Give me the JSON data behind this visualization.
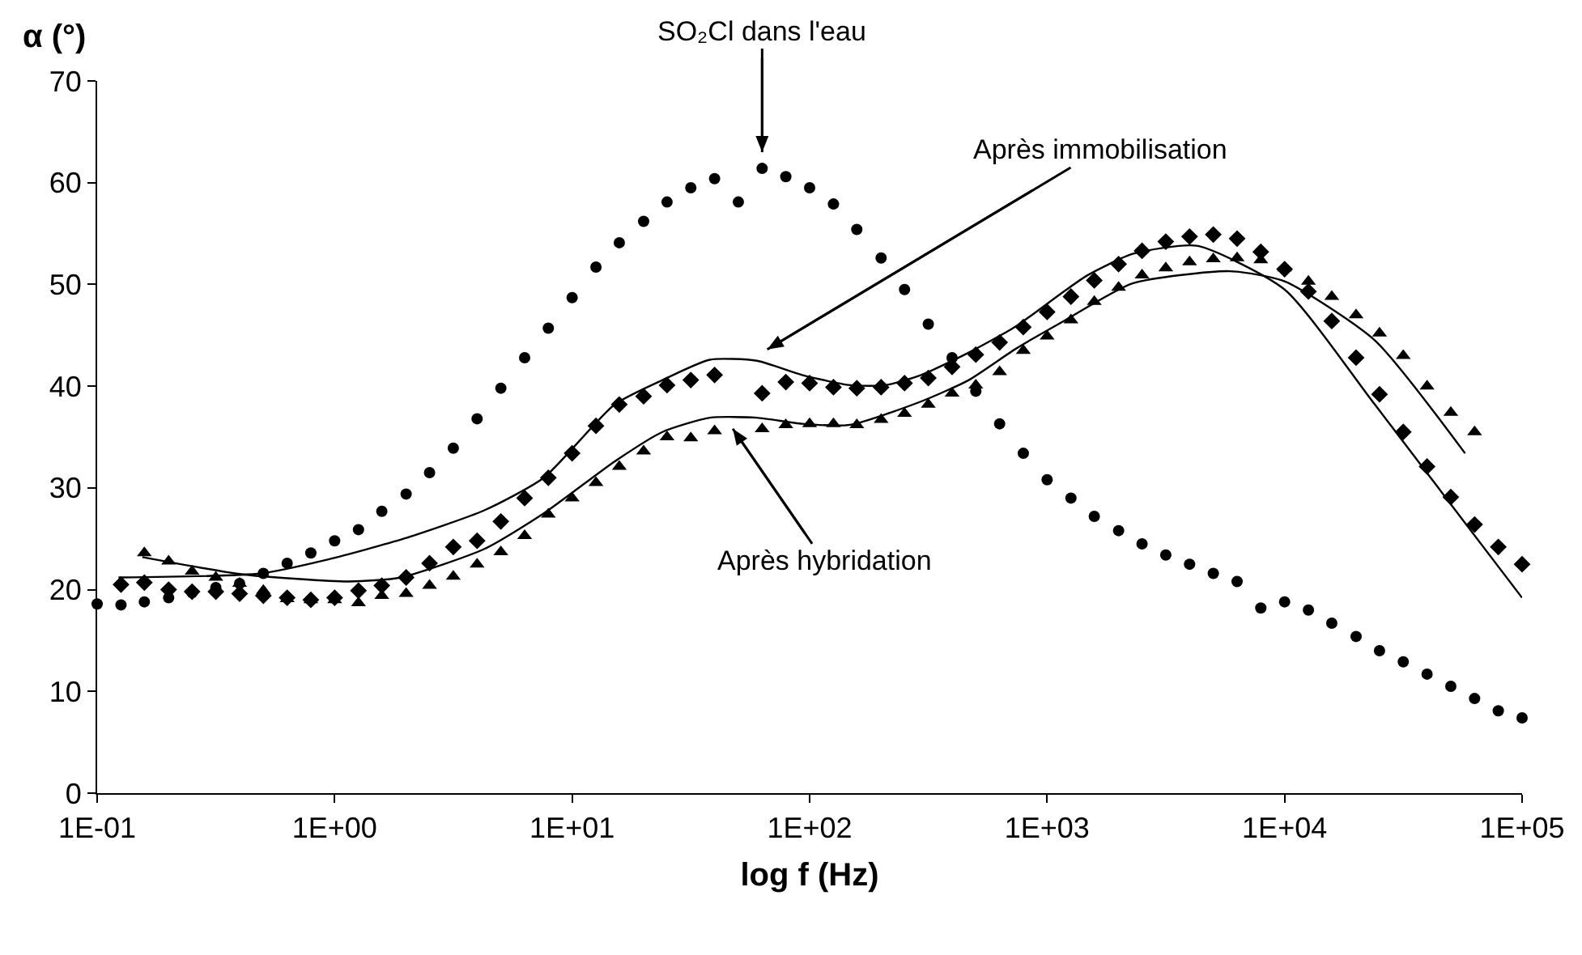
{
  "chart_data": {
    "type": "scatter",
    "xlabel": "log f (Hz)",
    "ylabel": "α (°)",
    "log": "x",
    "grid": false,
    "xlim": [
      0.1,
      100000
    ],
    "xticks": [
      {
        "value": 0.1,
        "label": "1E-01"
      },
      {
        "value": 1,
        "label": "1E+00"
      },
      {
        "value": 10,
        "label": "1E+01"
      },
      {
        "value": 100,
        "label": "1E+02"
      },
      {
        "value": 1000,
        "label": "1E+03"
      },
      {
        "value": 10000,
        "label": "1E+04"
      },
      {
        "value": 100000,
        "label": "1E+05"
      }
    ],
    "ylim": [
      0,
      70
    ],
    "yticks": [
      0,
      10,
      20,
      30,
      40,
      50,
      60,
      70
    ],
    "x": [
      0.1,
      0.126,
      0.158,
      0.2,
      0.251,
      0.316,
      0.398,
      0.501,
      0.631,
      0.794,
      1,
      1.26,
      1.58,
      2,
      2.51,
      3.16,
      3.98,
      5.01,
      6.31,
      7.94,
      10,
      12.6,
      15.8,
      20,
      25.1,
      31.6,
      39.8,
      50.1,
      63.1,
      79.4,
      100,
      126,
      158,
      200,
      251,
      316,
      398,
      501,
      631,
      794,
      1000,
      1260,
      1580,
      2000,
      2510,
      3160,
      3980,
      5010,
      6310,
      7940,
      10000,
      12600,
      15800,
      20000,
      25100,
      31600,
      39800,
      50100,
      63100,
      79400,
      100000
    ],
    "series": [
      {
        "type": "scatter",
        "marker": "circle",
        "color": "#000000",
        "values": [
          18.6,
          18.5,
          18.8,
          19.2,
          19.7,
          20.2,
          20.6,
          21.6,
          22.6,
          23.6,
          24.8,
          25.9,
          27.7,
          29.4,
          31.5,
          33.9,
          36.8,
          39.8,
          42.8,
          45.7,
          48.7,
          51.7,
          54.1,
          56.2,
          58.1,
          59.5,
          60.4,
          58.1,
          61.4,
          60.6,
          59.5,
          57.9,
          55.4,
          52.6,
          49.5,
          46.1,
          42.8,
          39.5,
          36.3,
          33.4,
          30.8,
          29.0,
          27.2,
          25.8,
          24.5,
          23.4,
          22.5,
          21.6,
          20.8,
          18.2,
          18.8,
          18.0,
          16.7,
          15.4,
          14.0,
          12.9,
          11.7,
          10.5,
          9.3,
          8.1,
          7.4
        ]
      },
      {
        "type": "scatter",
        "marker": "diamond",
        "color": "#000000",
        "values": [
          null,
          20.5,
          20.7,
          20.0,
          19.8,
          19.8,
          19.6,
          19.4,
          19.2,
          19.0,
          19.2,
          19.9,
          20.4,
          21.2,
          22.6,
          24.2,
          24.8,
          26.7,
          29.0,
          31.0,
          33.4,
          36.1,
          38.2,
          39.0,
          40.1,
          40.6,
          41.1,
          null,
          39.3,
          40.4,
          40.3,
          39.9,
          39.8,
          39.9,
          40.3,
          40.8,
          41.9,
          43.1,
          44.3,
          45.8,
          47.3,
          48.8,
          50.4,
          52.0,
          53.3,
          54.2,
          54.7,
          54.9,
          54.5,
          53.2,
          51.5,
          49.3,
          46.4,
          42.8,
          39.2,
          35.5,
          32.1,
          29.1,
          26.4,
          24.2,
          22.5
        ]
      },
      {
        "type": "scatter",
        "marker": "triangle",
        "color": "#000000",
        "values": [
          null,
          null,
          23.6,
          22.8,
          21.8,
          21.2,
          20.6,
          19.9,
          19.1,
          19.0,
          19.0,
          18.7,
          19.4,
          19.6,
          20.4,
          21.3,
          22.5,
          23.7,
          25.3,
          27.4,
          29.0,
          30.5,
          32.1,
          33.6,
          35.0,
          34.9,
          35.6,
          null,
          35.8,
          36.2,
          36.3,
          36.3,
          36.2,
          36.7,
          37.3,
          38.2,
          39.3,
          40.1,
          41.4,
          43.5,
          44.9,
          46.5,
          48.3,
          49.7,
          50.9,
          51.6,
          52.2,
          52.5,
          52.6,
          52.4,
          51.6,
          50.3,
          48.8,
          47.0,
          45.2,
          43.0,
          40.0,
          37.4,
          35.5,
          null,
          null
        ]
      },
      {
        "type": "line",
        "line_style": "solid",
        "color": "#000000",
        "x": [
          0.123,
          0.49,
          0.95,
          1.95,
          4.27,
          7.6,
          15.1,
          24,
          38,
          60,
          93,
          148,
          209,
          295,
          468,
          741,
          1175,
          1479,
          2291,
          4266,
          10000,
          23990,
          100000
        ],
        "values": [
          21.2,
          21.6,
          23,
          25,
          27.8,
          31,
          38.2,
          40.6,
          42.6,
          42.5,
          41.1,
          40.1,
          40.1,
          41.1,
          43.3,
          45.9,
          49.3,
          50.9,
          53,
          53.8,
          49.5,
          38.2,
          19.2
        ]
      },
      {
        "type": "line",
        "line_style": "solid",
        "color": "#000000",
        "x": [
          0.155,
          0.41,
          1.15,
          1.9,
          4.27,
          7.6,
          15.1,
          24,
          38,
          60,
          93,
          148,
          295,
          468,
          741,
          1175,
          2291,
          5888,
          10000,
          23990,
          57544
        ],
        "values": [
          23.2,
          21.5,
          20.8,
          21.2,
          24,
          27.5,
          32.6,
          35.5,
          36.9,
          36.9,
          36.3,
          36.2,
          38.5,
          40.6,
          43.7,
          46.4,
          50.1,
          51.3,
          50.3,
          44.5,
          33.4
        ]
      }
    ],
    "annotations": [
      {
        "text": "SO₂Cl dans l'eau",
        "x": 63.1,
        "y": 61.4
      },
      {
        "text": "Après immobilisation",
        "x": 62,
        "y": 43.2
      },
      {
        "text": "Après hybridation",
        "x": 45,
        "y": 36.6
      }
    ]
  }
}
